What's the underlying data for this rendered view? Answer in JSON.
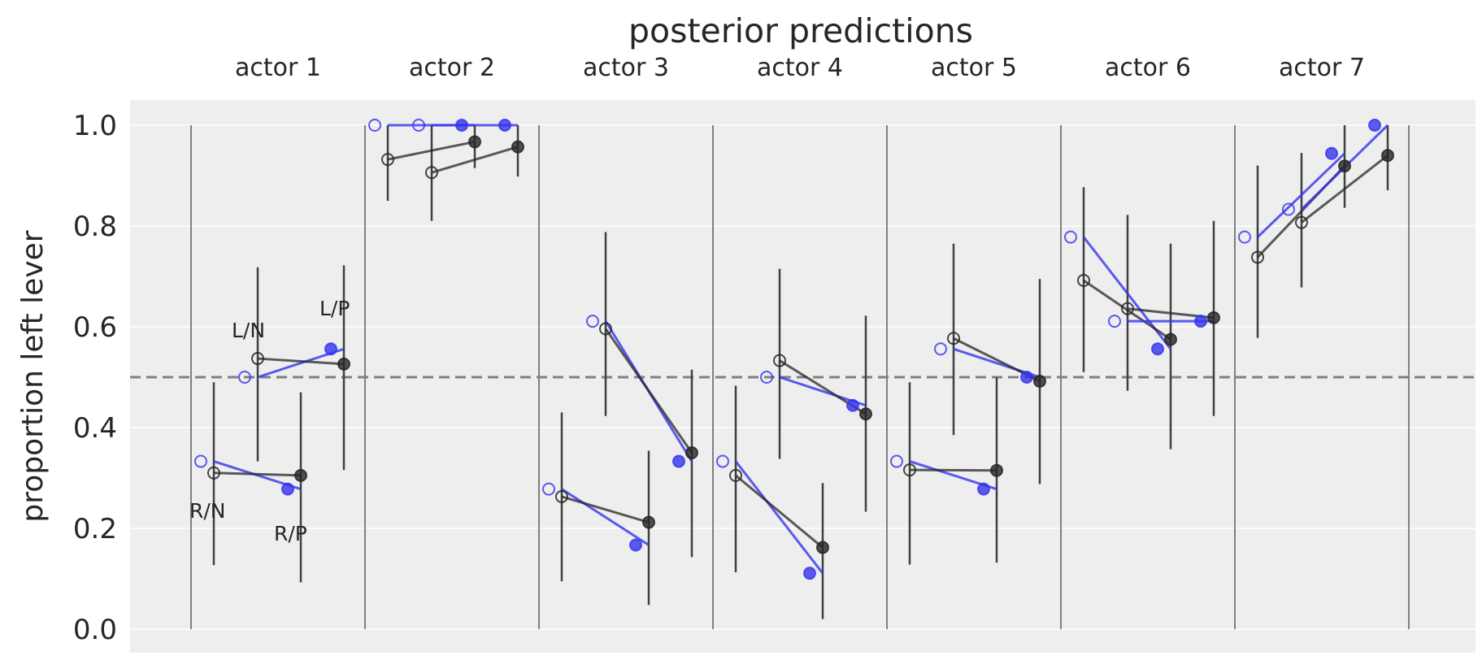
{
  "chart_data": {
    "type": "line",
    "title": "posterior predictions",
    "ylabel": "proportion left lever",
    "xlabel": "",
    "ylim": [
      -0.05,
      1.05
    ],
    "yticks": [
      "0.0",
      "0.2",
      "0.4",
      "0.6",
      "0.8",
      "1.0"
    ],
    "reference_line": 0.5,
    "grid": true,
    "treatments_order": [
      "R/N",
      "L/N",
      "R/P",
      "L/P"
    ],
    "treatment_annotations": [
      "R/N",
      "L/N",
      "R/P",
      "L/P"
    ],
    "colors": {
      "observed": "#3333ee",
      "predicted": "#262626",
      "interval": "#404040",
      "separator": "#808080",
      "reference": "#808080",
      "panel": "#eeeeee"
    },
    "actors": [
      {
        "label": "actor 1",
        "observed": [
          0.333,
          0.5,
          0.278,
          0.556
        ],
        "predicted": [
          0.31,
          0.537,
          0.305,
          0.526
        ],
        "interval_low": [
          0.127,
          0.333,
          0.093,
          0.316
        ],
        "interval_high": [
          0.49,
          0.718,
          0.47,
          0.722
        ]
      },
      {
        "label": "actor 2",
        "observed": [
          1.0,
          1.0,
          1.0,
          1.0
        ],
        "predicted": [
          0.932,
          0.906,
          0.967,
          0.957
        ],
        "interval_low": [
          0.85,
          0.81,
          0.915,
          0.898
        ],
        "interval_high": [
          1.0,
          1.0,
          1.0,
          1.0
        ]
      },
      {
        "label": "actor 3",
        "observed": [
          0.278,
          0.611,
          0.167,
          0.333
        ],
        "predicted": [
          0.263,
          0.596,
          0.212,
          0.35
        ],
        "interval_low": [
          0.095,
          0.423,
          0.048,
          0.143
        ],
        "interval_high": [
          0.43,
          0.788,
          0.354,
          0.515
        ]
      },
      {
        "label": "actor 4",
        "observed": [
          0.333,
          0.5,
          0.111,
          0.444
        ],
        "predicted": [
          0.305,
          0.533,
          0.162,
          0.427
        ],
        "interval_low": [
          0.113,
          0.338,
          0.02,
          0.233
        ],
        "interval_high": [
          0.483,
          0.715,
          0.29,
          0.622
        ]
      },
      {
        "label": "actor 5",
        "observed": [
          0.333,
          0.556,
          0.278,
          0.5
        ],
        "predicted": [
          0.316,
          0.577,
          0.315,
          0.492
        ],
        "interval_low": [
          0.128,
          0.385,
          0.132,
          0.288
        ],
        "interval_high": [
          0.49,
          0.765,
          0.5,
          0.695
        ]
      },
      {
        "label": "actor 6",
        "observed": [
          0.778,
          0.611,
          0.556,
          0.611
        ],
        "predicted": [
          0.692,
          0.636,
          0.575,
          0.618
        ],
        "interval_low": [
          0.51,
          0.473,
          0.357,
          0.423
        ],
        "interval_high": [
          0.877,
          0.822,
          0.765,
          0.81
        ]
      },
      {
        "label": "actor 7",
        "observed": [
          0.778,
          0.833,
          0.944,
          1.0
        ],
        "predicted": [
          0.738,
          0.807,
          0.919,
          0.94
        ],
        "interval_low": [
          0.578,
          0.678,
          0.836,
          0.871
        ],
        "interval_high": [
          0.92,
          0.945,
          1.0,
          1.0
        ]
      }
    ]
  }
}
